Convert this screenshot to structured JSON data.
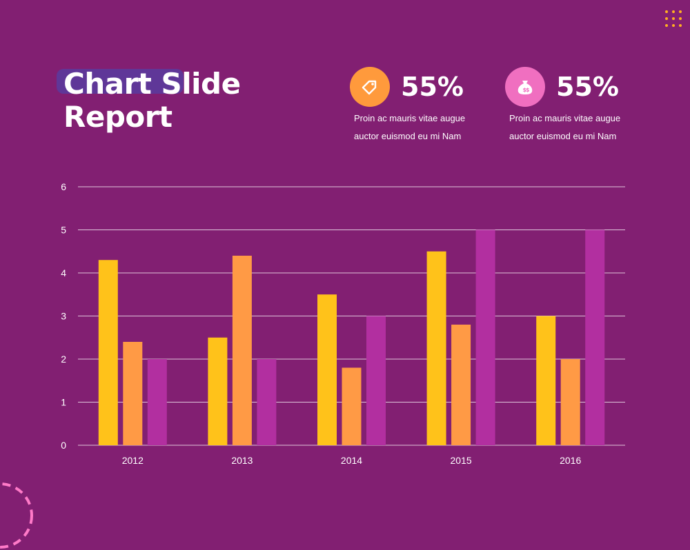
{
  "slide": {
    "title": "Chart Slide Report"
  },
  "stats": [
    {
      "value": "55%",
      "text": "Proin ac mauris vitae augue auctor euismod eu mi Nam",
      "icon": "price-tag-icon",
      "icon_color": "#ff9a3c"
    },
    {
      "value": "55%",
      "text": "Proin ac mauris vitae augue auctor euismod eu mi Nam",
      "icon": "money-bag-icon",
      "icon_color": "#f06fc0"
    }
  ],
  "colors": {
    "background": "#821f72",
    "series": [
      "#ffc21a",
      "#ff9a45",
      "#b22fa0"
    ],
    "dots": "#ffb020",
    "arc": "#ff7ac8"
  },
  "chart_data": {
    "type": "bar",
    "categories": [
      "2012",
      "2013",
      "2014",
      "2015",
      "2016"
    ],
    "series": [
      {
        "values": [
          4.3,
          2.5,
          3.5,
          4.5,
          3.0
        ]
      },
      {
        "values": [
          2.4,
          4.4,
          1.8,
          2.8,
          2.0
        ]
      },
      {
        "values": [
          2.0,
          2.0,
          3.0,
          5.0,
          5.0
        ]
      }
    ],
    "yticks": [
      "0",
      "1",
      "2",
      "3",
      "4",
      "5",
      "6"
    ],
    "ylim": [
      0,
      6
    ],
    "grid": true,
    "legend": "none"
  }
}
